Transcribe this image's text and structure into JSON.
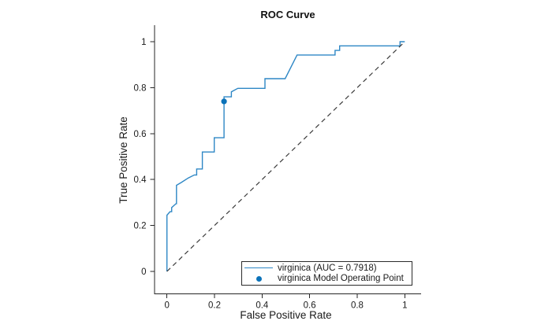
{
  "title": "ROC Curve",
  "axes": {
    "xlabel": "False Positive Rate",
    "ylabel": "True Positive Rate",
    "xticks": [
      "0",
      "0.2",
      "0.4",
      "0.6",
      "0.8",
      "1"
    ],
    "xtick_values": [
      0,
      0.2,
      0.4,
      0.6,
      0.8,
      1
    ],
    "yticks": [
      "0",
      "0.2",
      "0.4",
      "0.6",
      "0.8",
      "1"
    ],
    "ytick_values": [
      0,
      0.2,
      0.4,
      0.6,
      0.8,
      1
    ]
  },
  "legend": {
    "items": [
      {
        "type": "line",
        "label": "virginica (AUC = 0.7918)"
      },
      {
        "type": "point",
        "label": "virginica Model Operating Point"
      }
    ]
  },
  "colors": {
    "roc_line": "#2e87c5",
    "operating_point": "#0b72b9",
    "diagonal": "#3b3b3b",
    "axis": "#262626"
  },
  "chart_data": {
    "type": "line",
    "title": "ROC Curve",
    "xlabel": "False Positive Rate",
    "ylabel": "True Positive Rate",
    "xlim": [
      -0.05,
      1.07
    ],
    "ylim": [
      -0.1,
      1.07
    ],
    "grid": false,
    "legend_position": "southeast",
    "auc": 0.7918,
    "series": [
      {
        "name": "virginica (AUC = 0.7918)",
        "style": "solid",
        "x": [
          0,
          0,
          0.013,
          0.02,
          0.02,
          0.038,
          0.04,
          0.04,
          0.06,
          0.09,
          0.115,
          0.125,
          0.125,
          0.149,
          0.149,
          0.199,
          0.199,
          0.24,
          0.24,
          0.271,
          0.271,
          0.298,
          0.412,
          0.412,
          0.497,
          0.547,
          0.707,
          0.707,
          0.726,
          0.726,
          0.98,
          0.98,
          1
        ],
        "y": [
          0,
          0.245,
          0.26,
          0.26,
          0.278,
          0.295,
          0.295,
          0.375,
          0.387,
          0.407,
          0.42,
          0.42,
          0.446,
          0.446,
          0.52,
          0.52,
          0.582,
          0.582,
          0.76,
          0.76,
          0.782,
          0.797,
          0.797,
          0.839,
          0.839,
          0.942,
          0.942,
          0.962,
          0.962,
          0.982,
          0.982,
          1,
          1
        ]
      },
      {
        "name": "Reference diagonal",
        "style": "dashed",
        "x": [
          0,
          1
        ],
        "y": [
          0,
          1
        ]
      }
    ],
    "operating_point": {
      "name": "virginica Model Operating Point",
      "x": 0.24,
      "y": 0.74
    }
  }
}
